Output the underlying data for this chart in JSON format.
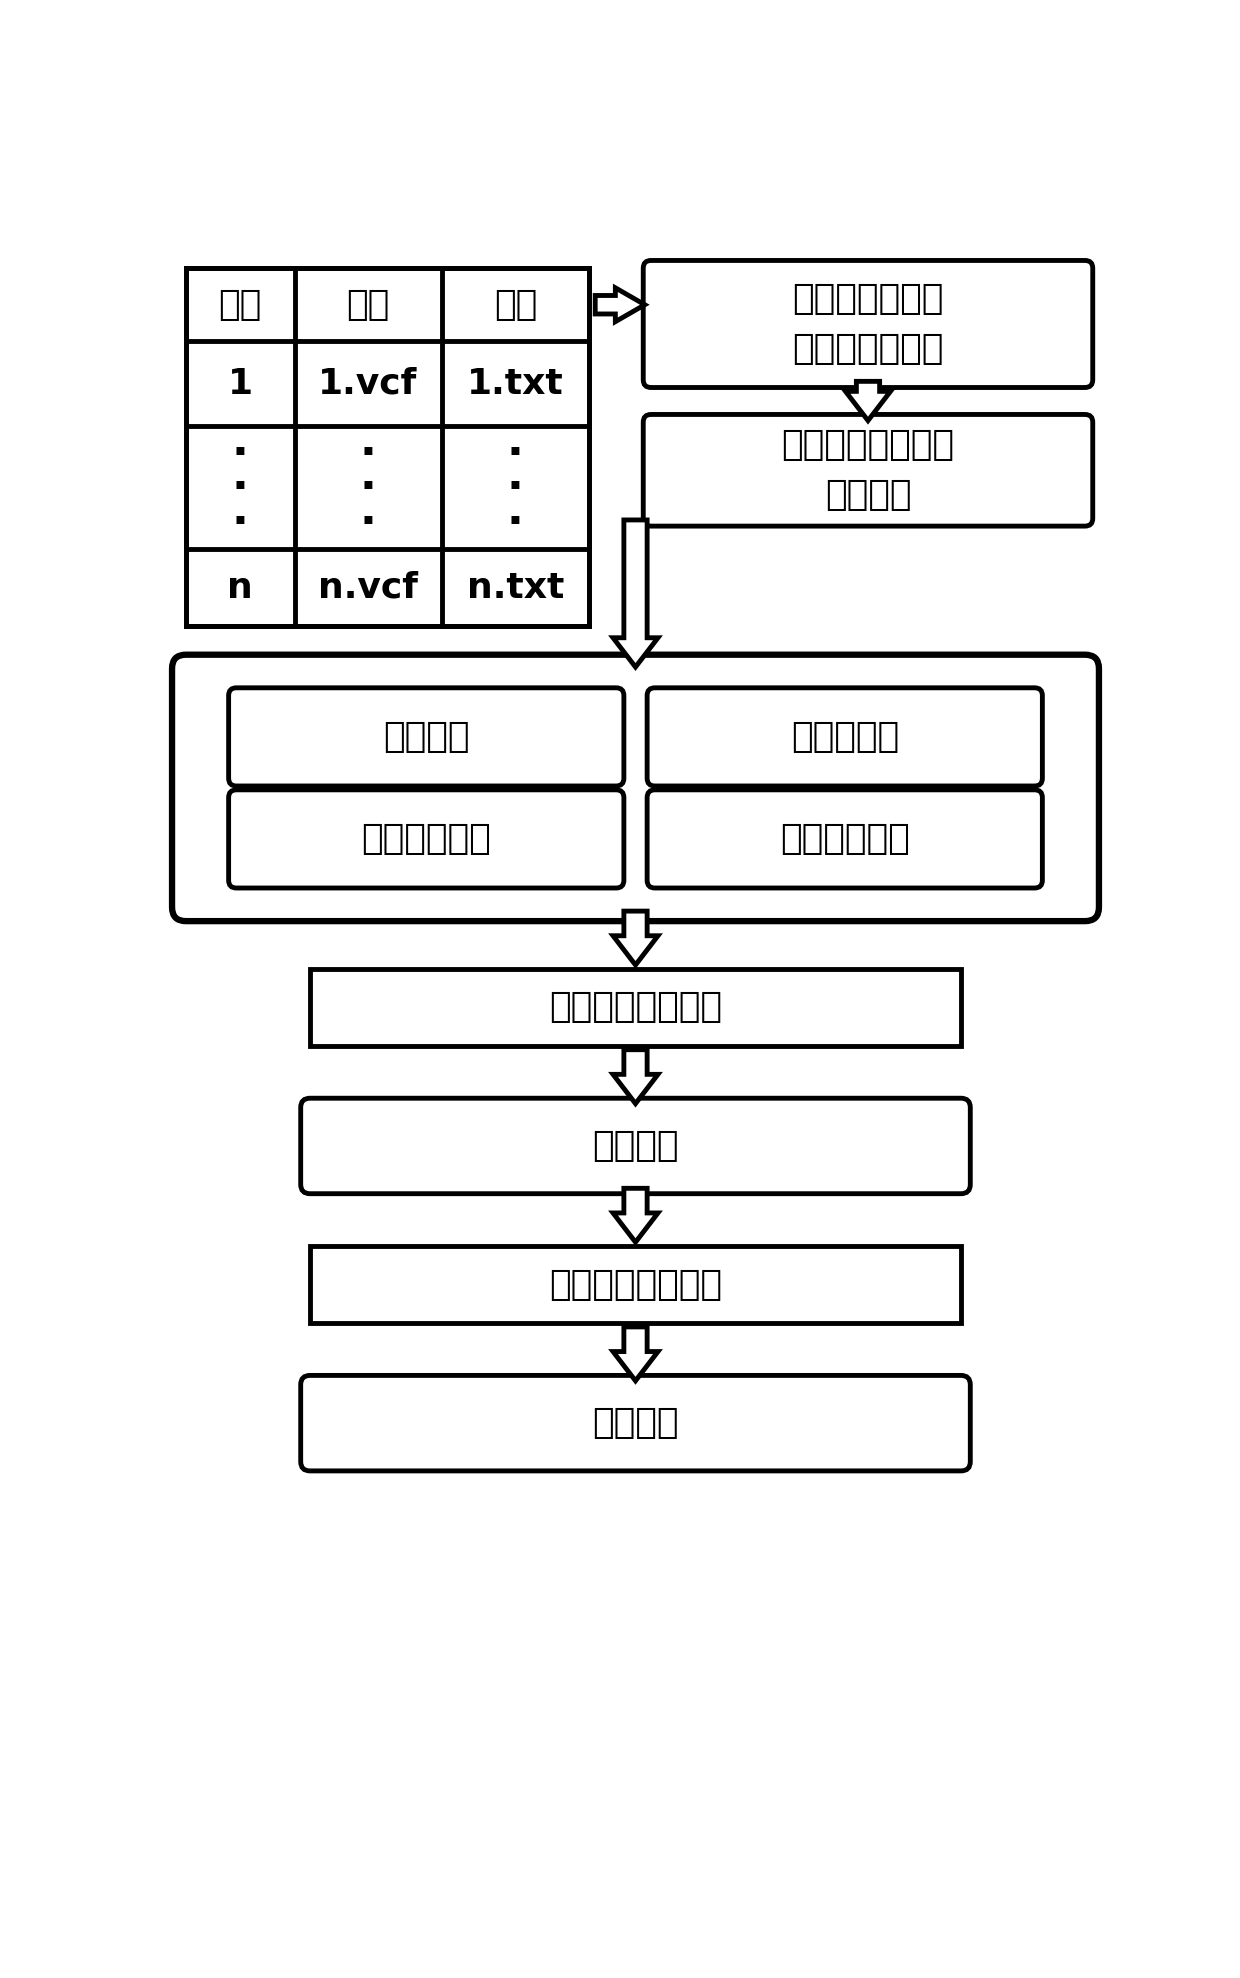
{
  "bg_color": "#ffffff",
  "table_headers": [
    "样本",
    "变异",
    "注释"
  ],
  "table_row1": [
    "1",
    "1.vcf",
    "1.txt"
  ],
  "table_rowN": [
    "n",
    "n.vcf",
    "n.txt"
  ],
  "box_exome": "外显子组测序数\n据流程处理结果",
  "box_merge": "数据合并、分割、\n功能过滤",
  "box_annot_matrix": "注释矩阵",
  "box_geno_matrix": "基因型矩阵",
  "box_var_freq": "变异频率矩阵",
  "box_seq_depth": "测序深度矩阵",
  "box_mine": "潜在致病变异挖掘",
  "box_varlist": "变异列表",
  "box_stat": "潜在致病变异统计",
  "box_chart": "统计图表",
  "lw": 3.5
}
